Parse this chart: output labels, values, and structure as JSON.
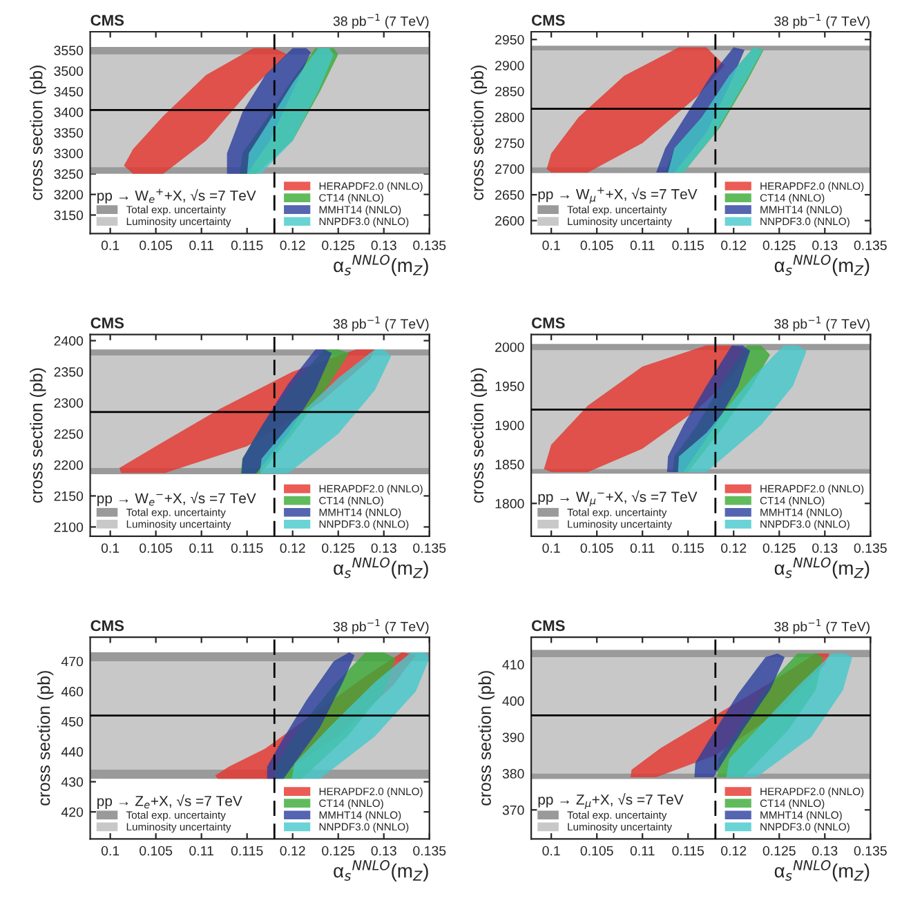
{
  "chart_data": [
    {
      "type": "area",
      "title": null,
      "annotations": [
        "CMS",
        "38 pb$^{−1}$ (7 TeV)"
      ],
      "xlabel": "α$_{s}$$^{NNLO}$(m$_{Z}$)",
      "ylabel": "cross section (pb)",
      "legend_title": "pp → W$_{e}$$^{+}$+X, √s =7 TeV",
      "legend": "bottom",
      "xlim": [
        0.0978,
        0.135
      ],
      "xticks": [
        0.1,
        0.105,
        0.11,
        0.115,
        0.12,
        0.125,
        0.13,
        0.135
      ],
      "ylim": [
        3105,
        3595
      ],
      "yticks": [
        3150,
        3200,
        3250,
        3300,
        3350,
        3400,
        3450,
        3500,
        3550
      ],
      "bands": [
        {
          "axis": "y",
          "from": 3250,
          "to": 3558,
          "label": "Total exp. uncertainty",
          "color": "#9a9a9a"
        },
        {
          "axis": "y",
          "from": 3266,
          "to": 3540,
          "label": "Luminosity uncertainty",
          "color": "#c8c8c8"
        }
      ],
      "ref_lines": [
        {
          "axis": "x",
          "value": 0.118,
          "line_style": "dashed"
        },
        {
          "axis": "y",
          "value": 3405,
          "line_style": "solid"
        }
      ],
      "series": [
        {
          "name": "HERAPDF2.0 (NNLO)",
          "color": "#e5332a",
          "x": [
            0.1015,
            0.1025,
            0.1058,
            0.1105,
            0.1152,
            0.1194,
            0.118,
            0.1157,
            0.1105,
            0.1058,
            0.1025
          ],
          "values": [
            3270,
            3250,
            3250,
            3330,
            3450,
            3540,
            3555,
            3555,
            3490,
            3390,
            3310
          ]
        },
        {
          "name": "CT14 (NNLO)",
          "color": "#3aaa35",
          "x": [
            0.1142,
            0.116,
            0.12,
            0.123,
            0.125,
            0.1245,
            0.1225,
            0.12,
            0.117,
            0.1145
          ],
          "values": [
            3250,
            3250,
            3330,
            3450,
            3540,
            3555,
            3555,
            3480,
            3380,
            3300
          ]
        },
        {
          "name": "MMHT14 (NNLO)",
          "color": "#2b3f9e",
          "x": [
            0.1128,
            0.115,
            0.1175,
            0.12,
            0.122,
            0.1215,
            0.12,
            0.117,
            0.1145,
            0.1128
          ],
          "values": [
            3250,
            3250,
            3330,
            3450,
            3545,
            3555,
            3555,
            3490,
            3400,
            3300
          ]
        },
        {
          "name": "NNPDF3.0 (NNLO)",
          "color": "#45c8cc",
          "x": [
            0.115,
            0.1165,
            0.12,
            0.1228,
            0.1245,
            0.124,
            0.1228,
            0.12,
            0.1175,
            0.1152
          ],
          "values": [
            3250,
            3250,
            3330,
            3450,
            3540,
            3555,
            3555,
            3470,
            3380,
            3300
          ]
        }
      ]
    },
    {
      "type": "area",
      "title": null,
      "annotations": [
        "CMS",
        "38 pb$^{−1}$ (7 TeV)"
      ],
      "xlabel": "α$_{s}$$^{NNLO}$(m$_{Z}$)",
      "ylabel": "cross section (pb)",
      "legend_title": "pp → W$_{μ}$$^{+}$+X, √s =7 TeV",
      "legend": "bottom",
      "xlim": [
        0.0978,
        0.135
      ],
      "xticks": [
        0.1,
        0.105,
        0.11,
        0.115,
        0.12,
        0.125,
        0.13,
        0.135
      ],
      "ylim": [
        2575,
        2965
      ],
      "yticks": [
        2600,
        2650,
        2700,
        2750,
        2800,
        2850,
        2900,
        2950
      ],
      "bands": [
        {
          "axis": "y",
          "from": 2692,
          "to": 2938,
          "label": "Total exp. uncertainty",
          "color": "#9a9a9a"
        },
        {
          "axis": "y",
          "from": 2703,
          "to": 2929,
          "label": "Luminosity uncertainty",
          "color": "#c8c8c8"
        }
      ],
      "ref_lines": [
        {
          "axis": "x",
          "value": 0.118,
          "line_style": "dashed"
        },
        {
          "axis": "y",
          "value": 2816,
          "line_style": "solid"
        }
      ],
      "series": [
        {
          "name": "HERAPDF2.0 (NNLO)",
          "color": "#e5332a",
          "x": [
            0.0995,
            0.1,
            0.104,
            0.11,
            0.116,
            0.119,
            0.117,
            0.114,
            0.108,
            0.103,
            0.1
          ],
          "values": [
            2700,
            2693,
            2693,
            2750,
            2840,
            2900,
            2935,
            2935,
            2880,
            2800,
            2730
          ]
        },
        {
          "name": "CT14 (NNLO)",
          "color": "#3aaa35",
          "x": [
            0.1125,
            0.1145,
            0.1185,
            0.1215,
            0.1233,
            0.1222,
            0.1195,
            0.1165,
            0.1135
          ],
          "values": [
            2693,
            2693,
            2780,
            2870,
            2930,
            2935,
            2880,
            2800,
            2740
          ]
        },
        {
          "name": "MMHT14 (NNLO)",
          "color": "#2b3f9e",
          "x": [
            0.1115,
            0.1135,
            0.117,
            0.1195,
            0.1212,
            0.12,
            0.1175,
            0.115,
            0.1125
          ],
          "values": [
            2693,
            2693,
            2770,
            2860,
            2930,
            2935,
            2880,
            2810,
            2740
          ]
        },
        {
          "name": "NNPDF3.0 (NNLO)",
          "color": "#45c8cc",
          "x": [
            0.1128,
            0.1145,
            0.118,
            0.121,
            0.1232,
            0.1222,
            0.1195,
            0.1165,
            0.1135
          ],
          "values": [
            2693,
            2693,
            2770,
            2860,
            2930,
            2935,
            2880,
            2800,
            2740
          ]
        }
      ]
    },
    {
      "type": "area",
      "title": null,
      "annotations": [
        "CMS",
        "38 pb$^{−1}$ (7 TeV)"
      ],
      "xlabel": "α$_{s}$$^{NNLO}$(m$_{Z}$)",
      "ylabel": "cross section (pb)",
      "legend_title": "pp → W$_{e}$$^{−}$+X, √s =7 TeV",
      "legend": "bottom",
      "xlim": [
        0.0978,
        0.135
      ],
      "xticks": [
        0.1,
        0.105,
        0.11,
        0.115,
        0.12,
        0.125,
        0.13,
        0.135
      ],
      "ylim": [
        2085,
        2410
      ],
      "yticks": [
        2100,
        2150,
        2200,
        2250,
        2300,
        2350,
        2400
      ],
      "bands": [
        {
          "axis": "y",
          "from": 2185,
          "to": 2386,
          "label": "Total exp. uncertainty",
          "color": "#9a9a9a"
        },
        {
          "axis": "y",
          "from": 2195,
          "to": 2376,
          "label": "Luminosity uncertainty",
          "color": "#c8c8c8"
        }
      ],
      "ref_lines": [
        {
          "axis": "x",
          "value": 0.118,
          "line_style": "dashed"
        },
        {
          "axis": "y",
          "value": 2285,
          "line_style": "solid"
        }
      ],
      "series": [
        {
          "name": "HERAPDF2.0 (NNLO)",
          "color": "#e5332a",
          "x": [
            0.1012,
            0.106,
            0.115,
            0.123,
            0.1285,
            0.129,
            0.127,
            0.12,
            0.112,
            0.105,
            0.101
          ],
          "values": [
            2187,
            2187,
            2230,
            2300,
            2370,
            2386,
            2386,
            2350,
            2290,
            2230,
            2195
          ]
        },
        {
          "name": "CT14 (NNLO)",
          "color": "#3aaa35",
          "x": [
            0.1143,
            0.1165,
            0.12,
            0.124,
            0.1262,
            0.125,
            0.1235,
            0.12,
            0.1165,
            0.1145
          ],
          "values": [
            2186,
            2186,
            2250,
            2330,
            2380,
            2386,
            2386,
            2330,
            2260,
            2210
          ]
        },
        {
          "name": "MMHT14 (NNLO)",
          "color": "#2b3f9e",
          "x": [
            0.1144,
            0.116,
            0.1195,
            0.1225,
            0.1243,
            0.1235,
            0.1225,
            0.1195,
            0.1165,
            0.1145
          ],
          "values": [
            2186,
            2186,
            2250,
            2320,
            2380,
            2386,
            2386,
            2330,
            2260,
            2210
          ]
        },
        {
          "name": "NNPDF3.0 (NNLO)",
          "color": "#45c8cc",
          "x": [
            0.1164,
            0.1195,
            0.125,
            0.129,
            0.1308,
            0.13,
            0.129,
            0.125,
            0.12,
            0.1166
          ],
          "values": [
            2186,
            2186,
            2250,
            2320,
            2375,
            2386,
            2386,
            2340,
            2270,
            2210
          ]
        }
      ]
    },
    {
      "type": "area",
      "title": null,
      "annotations": [
        "CMS",
        "38 pb$^{−1}$ (7 TeV)"
      ],
      "xlabel": "α$_{s}$$^{NNLO}$(m$_{Z}$)",
      "ylabel": "cross section (pb)",
      "legend_title": "pp → W$_{μ}$$^{−}$+X, √s =7 TeV",
      "legend": "bottom",
      "xlim": [
        0.0978,
        0.135
      ],
      "xticks": [
        0.1,
        0.105,
        0.11,
        0.115,
        0.12,
        0.125,
        0.13,
        0.135
      ],
      "ylim": [
        1758,
        2016
      ],
      "yticks": [
        1800,
        1850,
        1900,
        1950,
        2000
      ],
      "bands": [
        {
          "axis": "y",
          "from": 1838,
          "to": 2004,
          "label": "Total exp. uncertainty",
          "color": "#9a9a9a"
        },
        {
          "axis": "y",
          "from": 1844,
          "to": 1996,
          "label": "Luminosity uncertainty",
          "color": "#c8c8c8"
        }
      ],
      "ref_lines": [
        {
          "axis": "x",
          "value": 0.118,
          "line_style": "dashed"
        },
        {
          "axis": "y",
          "value": 1920,
          "line_style": "solid"
        }
      ],
      "series": [
        {
          "name": "HERAPDF2.0 (NNLO)",
          "color": "#e5332a",
          "x": [
            0.0992,
            0.1,
            0.104,
            0.11,
            0.116,
            0.12,
            0.1218,
            0.12,
            0.117,
            0.11,
            0.104,
            0.1
          ],
          "values": [
            1844,
            1840,
            1840,
            1870,
            1920,
            1965,
            1995,
            2002,
            2002,
            1975,
            1925,
            1875
          ]
        },
        {
          "name": "CT14 (NNLO)",
          "color": "#3aaa35",
          "x": [
            0.1133,
            0.115,
            0.119,
            0.122,
            0.124,
            0.123,
            0.1215,
            0.119,
            0.116,
            0.1135
          ],
          "values": [
            1840,
            1840,
            1900,
            1950,
            1990,
            2002,
            2002,
            1960,
            1900,
            1860
          ]
        },
        {
          "name": "MMHT14 (NNLO)",
          "color": "#2b3f9e",
          "x": [
            0.1127,
            0.1145,
            0.118,
            0.1205,
            0.1218,
            0.121,
            0.1198,
            0.117,
            0.1145,
            0.1128
          ],
          "values": [
            1840,
            1840,
            1900,
            1950,
            1995,
            2002,
            2002,
            1950,
            1900,
            1860
          ]
        },
        {
          "name": "NNPDF3.0 (NNLO)",
          "color": "#45c8cc",
          "x": [
            0.1139,
            0.117,
            0.123,
            0.1265,
            0.128,
            0.127,
            0.1255,
            0.122,
            0.117,
            0.114
          ],
          "values": [
            1840,
            1840,
            1900,
            1950,
            1995,
            2002,
            2002,
            1960,
            1890,
            1860
          ]
        }
      ]
    },
    {
      "type": "area",
      "title": null,
      "annotations": [
        "CMS",
        "38 pb$^{−1}$ (7 TeV)"
      ],
      "xlabel": "α$_{s}$$^{NNLO}$(m$_{Z}$)",
      "ylabel": "cross section (pb)",
      "legend_title": "pp → Z$_{e}$+X, √s =7 TeV",
      "legend": "bottom",
      "xlim": [
        0.0978,
        0.135
      ],
      "xticks": [
        0.1,
        0.105,
        0.11,
        0.115,
        0.12,
        0.125,
        0.13,
        0.135
      ],
      "ylim": [
        411,
        478
      ],
      "yticks": [
        420,
        430,
        440,
        450,
        460,
        470
      ],
      "bands": [
        {
          "axis": "y",
          "from": 431,
          "to": 473,
          "label": "Total exp. uncertainty",
          "color": "#9a9a9a"
        },
        {
          "axis": "y",
          "from": 434,
          "to": 470,
          "label": "Luminosity uncertainty",
          "color": "#c8c8c8"
        }
      ],
      "ref_lines": [
        {
          "axis": "x",
          "value": 0.118,
          "line_style": "dashed"
        },
        {
          "axis": "y",
          "value": 452,
          "line_style": "solid"
        }
      ],
      "series": [
        {
          "name": "HERAPDF2.0 (NNLO)",
          "color": "#e5332a",
          "x": [
            0.1115,
            0.1118,
            0.118,
            0.125,
            0.131,
            0.1335,
            0.132,
            0.128,
            0.122,
            0.117,
            0.113
          ],
          "values": [
            432,
            431,
            431,
            445,
            462,
            472,
            473,
            465,
            452,
            441,
            435
          ]
        },
        {
          "name": "CT14 (NNLO)",
          "color": "#3aaa35",
          "x": [
            0.118,
            0.121,
            0.126,
            0.13,
            0.1313,
            0.13,
            0.128,
            0.1245,
            0.1205,
            0.1182
          ],
          "values": [
            431,
            431,
            445,
            460,
            471,
            473,
            473,
            462,
            447,
            436
          ]
        },
        {
          "name": "MMHT14 (NNLO)",
          "color": "#2b3f9e",
          "x": [
            0.1172,
            0.119,
            0.123,
            0.1255,
            0.1268,
            0.1262,
            0.1245,
            0.1215,
            0.1185,
            0.1172
          ],
          "values": [
            431,
            431,
            448,
            463,
            472,
            473,
            470,
            457,
            442,
            435
          ]
        },
        {
          "name": "NNPDF3.0 (NNLO)",
          "color": "#45c8cc",
          "x": [
            0.1199,
            0.123,
            0.129,
            0.1335,
            0.135,
            0.1345,
            0.133,
            0.129,
            0.124,
            0.1202
          ],
          "values": [
            431,
            431,
            445,
            460,
            471,
            473,
            473,
            463,
            448,
            436
          ]
        }
      ]
    },
    {
      "type": "area",
      "title": null,
      "annotations": [
        "CMS",
        "38 pb$^{−1}$ (7 TeV)"
      ],
      "xlabel": "α$_{s}$$^{NNLO}$(m$_{Z}$)",
      "ylabel": "cross section (pb)",
      "legend_title": "pp → Z$_{μ}$+X, √s =7 TeV",
      "legend": "bottom",
      "xlim": [
        0.0978,
        0.135
      ],
      "xticks": [
        0.1,
        0.105,
        0.11,
        0.115,
        0.12,
        0.125,
        0.13,
        0.135
      ],
      "ylim": [
        362,
        417.5
      ],
      "yticks": [
        370,
        380,
        390,
        400,
        410
      ],
      "bands": [
        {
          "axis": "y",
          "from": 378.5,
          "to": 414,
          "label": "Total exp. uncertainty",
          "color": "#9a9a9a"
        },
        {
          "axis": "y",
          "from": 380,
          "to": 412,
          "label": "Luminosity uncertainty",
          "color": "#c8c8c8"
        }
      ],
      "ref_lines": [
        {
          "axis": "x",
          "value": 0.118,
          "line_style": "dashed"
        },
        {
          "axis": "y",
          "value": 396,
          "line_style": "solid"
        }
      ],
      "series": [
        {
          "name": "HERAPDF2.0 (NNLO)",
          "color": "#e5332a",
          "x": [
            0.1087,
            0.1115,
            0.118,
            0.125,
            0.13,
            0.1305,
            0.129,
            0.124,
            0.118,
            0.112,
            0.1088
          ],
          "values": [
            379,
            379,
            385,
            397,
            410,
            413,
            413,
            405,
            396,
            387,
            381
          ]
        },
        {
          "name": "CT14 (NNLO)",
          "color": "#3aaa35",
          "x": [
            0.1182,
            0.121,
            0.126,
            0.129,
            0.1298,
            0.129,
            0.127,
            0.124,
            0.1205,
            0.1183
          ],
          "values": [
            379,
            379,
            392,
            403,
            412,
            413,
            413,
            405,
            392,
            384
          ]
        },
        {
          "name": "MMHT14 (NNLO)",
          "color": "#2b3f9e",
          "x": [
            0.1157,
            0.1178,
            0.121,
            0.124,
            0.1256,
            0.1248,
            0.1235,
            0.1205,
            0.1175,
            0.1158
          ],
          "values": [
            379,
            379,
            392,
            403,
            412,
            413,
            412,
            402,
            390,
            383
          ]
        },
        {
          "name": "NNPDF3.0 (NNLO)",
          "color": "#45c8cc",
          "x": [
            0.1192,
            0.1225,
            0.1285,
            0.132,
            0.133,
            0.1322,
            0.1308,
            0.127,
            0.1225,
            0.1195
          ],
          "values": [
            379,
            379,
            390,
            403,
            412,
            413,
            413,
            404,
            392,
            384
          ]
        }
      ]
    }
  ]
}
